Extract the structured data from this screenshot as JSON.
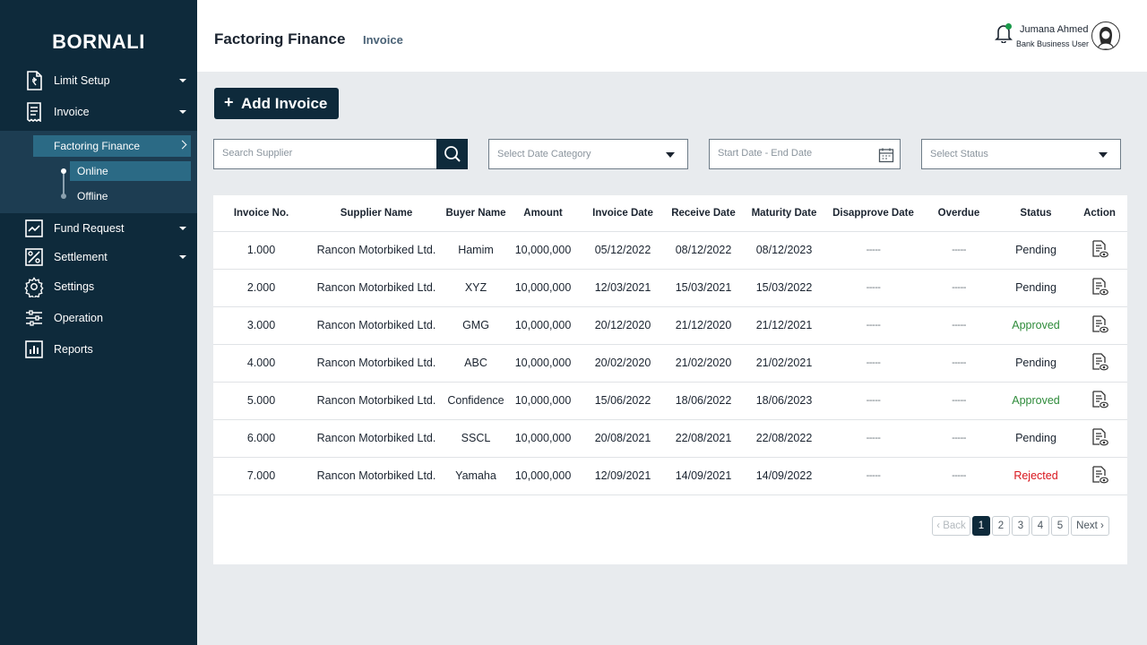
{
  "brand": "BORNALI",
  "sidebar": {
    "items": [
      {
        "label": "Limit Setup",
        "icon": "document-money-icon"
      },
      {
        "label": "Invoice",
        "icon": "receipt-icon"
      },
      {
        "label": "Fund Request",
        "icon": "chart-trend-icon"
      },
      {
        "label": "Settlement",
        "icon": "percent-icon"
      },
      {
        "label": "Settings",
        "icon": "gear-icon"
      },
      {
        "label": "Operation",
        "icon": "sliders-icon"
      },
      {
        "label": "Reports",
        "icon": "bar-chart-icon"
      }
    ],
    "sub_active": "Factoring Finance",
    "sub_options": [
      "Online",
      "Offline"
    ]
  },
  "header": {
    "title": "Factoring Finance",
    "crumb": "Invoice",
    "user_name": "Jumana Ahmed",
    "user_role": "Bank Business User"
  },
  "toolbar": {
    "add_label": "Add Invoice",
    "add_plus": "+",
    "search_placeholder": "Search Supplier",
    "date_category_placeholder": "Select Date Category",
    "date_range_placeholder": "Start Date - End Date",
    "status_placeholder": "Select Status"
  },
  "table": {
    "headers": [
      "Invoice No.",
      "Supplier Name",
      "Buyer Name",
      "Amount",
      "Invoice Date",
      "Receive Date",
      "Maturity Date",
      "Disapprove Date",
      "Overdue",
      "Status",
      "Action"
    ],
    "rows": [
      [
        "1.000",
        "Rancon Motorbiked Ltd.",
        "Hamim",
        "10,000,000",
        "05/12/2022",
        "08/12/2022",
        "08/12/2023",
        "-----",
        "-----",
        "Pending"
      ],
      [
        "2.000",
        "Rancon Motorbiked Ltd.",
        "XYZ",
        "10,000,000",
        "12/03/2021",
        "15/03/2021",
        "15/03/2022",
        "-----",
        "-----",
        "Pending"
      ],
      [
        "3.000",
        "Rancon Motorbiked Ltd.",
        "GMG",
        "10,000,000",
        "20/12/2020",
        "21/12/2020",
        "21/12/2021",
        "-----",
        "-----",
        "Approved"
      ],
      [
        "4.000",
        "Rancon Motorbiked Ltd.",
        "ABC",
        "10,000,000",
        "20/02/2020",
        "21/02/2020",
        "21/02/2021",
        "-----",
        "-----",
        "Pending"
      ],
      [
        "5.000",
        "Rancon Motorbiked Ltd.",
        "Confidence",
        "10,000,000",
        "15/06/2022",
        "18/06/2022",
        "18/06/2023",
        "-----",
        "-----",
        "Approved"
      ],
      [
        "6.000",
        "Rancon Motorbiked Ltd.",
        "SSCL",
        "10,000,000",
        "20/08/2021",
        "22/08/2021",
        "22/08/2022",
        "-----",
        "-----",
        "Pending"
      ],
      [
        "7.000",
        "Rancon Motorbiked Ltd.",
        "Yamaha",
        "10,000,000",
        "12/09/2021",
        "14/09/2021",
        "14/09/2022",
        "-----",
        "-----",
        "Rejected"
      ]
    ]
  },
  "status_colors": {
    "Pending": "#1b2430",
    "Approved": "#2e8b3a",
    "Rejected": "#d9161d"
  },
  "pagination": {
    "back": "‹ Back",
    "pages": [
      "1",
      "2",
      "3",
      "4",
      "5"
    ],
    "current": "1",
    "next": "Next ›"
  }
}
